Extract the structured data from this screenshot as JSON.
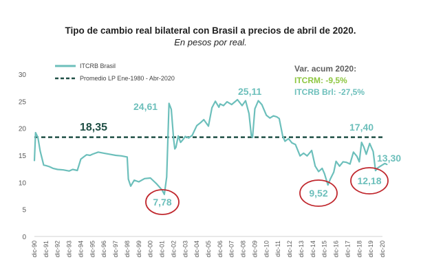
{
  "chart_data": {
    "type": "line",
    "title": "Tipo de cambio real bilateral con Brasil a precios de abril de 2020.",
    "subtitle": "En pesos por real.",
    "xlabel": "",
    "ylabel": "",
    "ylim": [
      0,
      30
    ],
    "yticks": [
      "0",
      "5",
      "10",
      "15",
      "20",
      "25",
      "30"
    ],
    "xticks": [
      "dic-90",
      "dic-91",
      "dic-92",
      "dic-93",
      "dic-94",
      "dic-95",
      "dic-96",
      "dic-97",
      "dic-98",
      "dic-99",
      "dic-00",
      "dic-01",
      "dic-02",
      "dic-03",
      "dic-04",
      "dic-05",
      "dic-06",
      "dic-07",
      "dic-08",
      "dic-09",
      "dic-10",
      "dic-11",
      "dic-12",
      "dic-13",
      "dic-14",
      "dic-15",
      "dic-16",
      "dic-17",
      "dic-18",
      "dic-19",
      "dic-20"
    ],
    "grid": false,
    "legend_position": "top-left",
    "colors": {
      "series": "#6cbfbb",
      "average": "#1f4f45",
      "circle": "#c0272d",
      "green": "#8dc63f",
      "average_label": "#1f4f45"
    },
    "series": [
      {
        "name": "ITCRB Brasil",
        "x": [
          1990.0,
          1990.1,
          1990.3,
          1990.5,
          1990.8,
          1991.0,
          1991.3,
          1991.6,
          1992.0,
          1992.5,
          1993.0,
          1993.3,
          1993.7,
          1994.0,
          1994.3,
          1994.5,
          1994.8,
          1995.0,
          1995.5,
          1996.0,
          1996.5,
          1997.0,
          1997.5,
          1998.0,
          1998.1,
          1998.3,
          1998.6,
          1999.0,
          1999.5,
          2000.0,
          2000.5,
          2001.0,
          2001.2,
          2001.4,
          2001.6,
          2001.8,
          2002.0,
          2002.1,
          2002.2,
          2002.4,
          2002.6,
          2002.8,
          2003.0,
          2003.3,
          2003.6,
          2004.0,
          2004.3,
          2004.6,
          2005.0,
          2005.3,
          2005.6,
          2005.9,
          2006.0,
          2006.3,
          2006.6,
          2007.0,
          2007.5,
          2007.9,
          2008.2,
          2008.5,
          2008.7,
          2008.8,
          2009.0,
          2009.2,
          2009.3,
          2009.6,
          2010.0,
          2010.3,
          2010.6,
          2010.9,
          2011.1,
          2011.4,
          2011.6,
          2011.9,
          2012.2,
          2012.5,
          2012.9,
          2013.2,
          2013.5,
          2013.9,
          2014.2,
          2014.5,
          2014.8,
          2015.0,
          2015.3,
          2015.5,
          2015.8,
          2016.0,
          2016.3,
          2016.6,
          2016.9,
          2017.2,
          2017.5,
          2017.8,
          2018.0,
          2018.2,
          2018.4,
          2018.6,
          2018.9,
          2019.2,
          2019.4,
          2019.6,
          2019.9,
          2020.2,
          2020.4
        ],
        "values": [
          14.0,
          19.2,
          18.3,
          15.8,
          13.2,
          13.1,
          12.9,
          12.6,
          12.4,
          12.3,
          12.1,
          12.4,
          12.2,
          14.3,
          14.8,
          15.1,
          15.0,
          15.2,
          15.6,
          15.4,
          15.2,
          15.0,
          14.9,
          14.7,
          10.6,
          9.3,
          10.4,
          10.1,
          10.7,
          10.8,
          9.8,
          8.6,
          7.78,
          11.0,
          24.61,
          23.5,
          18.0,
          16.2,
          16.5,
          18.6,
          17.4,
          17.9,
          18.5,
          18.2,
          18.7,
          20.5,
          21.0,
          21.6,
          20.4,
          23.8,
          25.0,
          23.9,
          24.5,
          24.2,
          24.9,
          24.4,
          25.3,
          24.2,
          25.1,
          22.7,
          18.6,
          18.3,
          23.6,
          24.6,
          25.11,
          24.4,
          22.4,
          21.9,
          22.3,
          22.1,
          21.8,
          18.6,
          17.6,
          18.1,
          17.3,
          17.0,
          14.9,
          15.4,
          14.9,
          15.9,
          13.0,
          12.0,
          12.6,
          11.6,
          9.52,
          10.6,
          11.9,
          13.9,
          13.0,
          13.8,
          13.7,
          13.4,
          15.6,
          14.8,
          13.8,
          17.4,
          16.5,
          15.2,
          17.2,
          15.7,
          12.18,
          12.7,
          13.1,
          13.5,
          13.3
        ]
      },
      {
        "name": "Promedio LP Ene-1980 - Abr-2020",
        "value": 18.35
      }
    ],
    "annotations": {
      "average_value": "18,35",
      "peak_2001": "24,61",
      "peak_2009": "25,11",
      "peak_2018": "17,40",
      "last_value": "13,30",
      "min_2001": "7,78",
      "min_2015": "9,52",
      "min_2019": "12,18"
    },
    "var_box": {
      "header": "Var. acum 2020:",
      "itcrm": "ITCRM: -9,5%",
      "itcrb": "ITCRB Brl: -27,5%"
    }
  }
}
